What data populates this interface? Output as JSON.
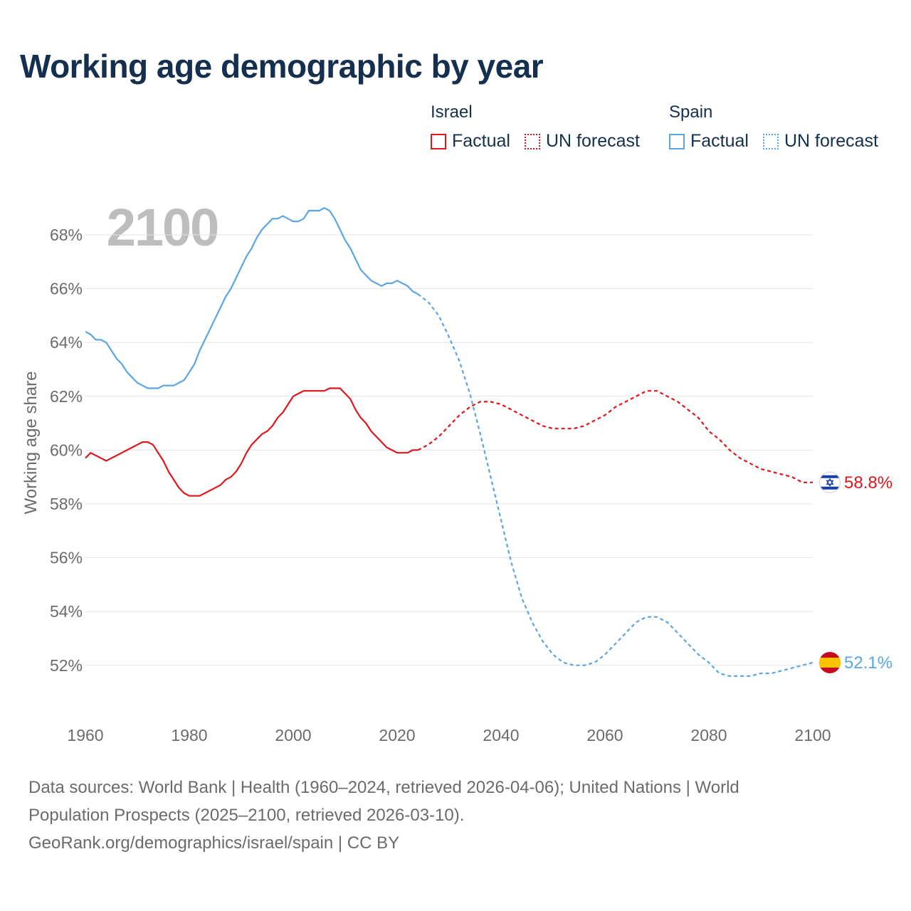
{
  "title": "Working age demographic by year",
  "legend": {
    "groups": [
      {
        "name": "Israel",
        "color": "#e0161d",
        "items": [
          {
            "label": "Factual",
            "style": "solid"
          },
          {
            "label": "UN forecast",
            "style": "dotted"
          }
        ]
      },
      {
        "name": "Spain",
        "color": "#5aa5e6",
        "items": [
          {
            "label": "Factual",
            "style": "solid"
          },
          {
            "label": "UN forecast",
            "style": "dotted"
          }
        ]
      }
    ]
  },
  "footer": {
    "line1": "Data sources: World Bank | Health (1960–2024, retrieved 2026-04-06); United Nations | World",
    "line2": "Population Prospects (2025–2100, retrieved 2026-03-10).",
    "line3": "GeoRank.org/demographics/israel/spain | CC BY"
  },
  "chart_data": {
    "type": "line",
    "title": "Working age demographic by year",
    "year_watermark": "2100",
    "ylabel": "Working age share",
    "xlabel": "",
    "xlim": [
      1960,
      2100
    ],
    "ylim": [
      50.5,
      69.5
    ],
    "x_ticks": [
      1960,
      1980,
      2000,
      2020,
      2040,
      2060,
      2080,
      2100
    ],
    "y_ticks": [
      52,
      54,
      56,
      58,
      60,
      62,
      64,
      66,
      68
    ],
    "y_tick_suffix": "%",
    "grid": true,
    "series": [
      {
        "name": "Israel",
        "color": "#e0161d",
        "flag": "israel-flag",
        "end_label": "58.8%",
        "factual": {
          "x": [
            1960,
            1961,
            1962,
            1963,
            1964,
            1965,
            1966,
            1967,
            1968,
            1969,
            1970,
            1971,
            1972,
            1973,
            1974,
            1975,
            1976,
            1977,
            1978,
            1979,
            1980,
            1981,
            1982,
            1983,
            1984,
            1985,
            1986,
            1987,
            1988,
            1989,
            1990,
            1991,
            1992,
            1993,
            1994,
            1995,
            1996,
            1997,
            1998,
            1999,
            2000,
            2001,
            2002,
            2003,
            2004,
            2005,
            2006,
            2007,
            2008,
            2009,
            2010,
            2011,
            2012,
            2013,
            2014,
            2015,
            2016,
            2017,
            2018,
            2019,
            2020,
            2021,
            2022,
            2023,
            2024
          ],
          "y": [
            59.7,
            59.9,
            59.8,
            59.7,
            59.6,
            59.7,
            59.8,
            59.9,
            60.0,
            60.1,
            60.2,
            60.3,
            60.3,
            60.2,
            59.9,
            59.6,
            59.2,
            58.9,
            58.6,
            58.4,
            58.3,
            58.3,
            58.3,
            58.4,
            58.5,
            58.6,
            58.7,
            58.9,
            59.0,
            59.2,
            59.5,
            59.9,
            60.2,
            60.4,
            60.6,
            60.7,
            60.9,
            61.2,
            61.4,
            61.7,
            62.0,
            62.1,
            62.2,
            62.2,
            62.2,
            62.2,
            62.2,
            62.3,
            62.3,
            62.3,
            62.1,
            61.9,
            61.5,
            61.2,
            61.0,
            60.7,
            60.5,
            60.3,
            60.1,
            60.0,
            59.9,
            59.9,
            59.9,
            60.0,
            60.0
          ]
        },
        "forecast": {
          "x": [
            2024,
            2026,
            2028,
            2030,
            2032,
            2034,
            2036,
            2038,
            2040,
            2042,
            2044,
            2046,
            2048,
            2050,
            2052,
            2054,
            2056,
            2058,
            2060,
            2062,
            2064,
            2066,
            2068,
            2070,
            2072,
            2074,
            2076,
            2078,
            2080,
            2082,
            2084,
            2086,
            2088,
            2090,
            2092,
            2094,
            2096,
            2098,
            2100
          ],
          "y": [
            60.0,
            60.2,
            60.5,
            60.9,
            61.3,
            61.6,
            61.8,
            61.8,
            61.7,
            61.5,
            61.3,
            61.1,
            60.9,
            60.8,
            60.8,
            60.8,
            60.9,
            61.1,
            61.3,
            61.6,
            61.8,
            62.0,
            62.2,
            62.2,
            62.0,
            61.8,
            61.5,
            61.2,
            60.7,
            60.4,
            60.0,
            59.7,
            59.5,
            59.3,
            59.2,
            59.1,
            59.0,
            58.8,
            58.8
          ]
        }
      },
      {
        "name": "Spain",
        "color": "#5aa5e6",
        "flag": "spain-flag",
        "end_label": "52.1%",
        "factual": {
          "x": [
            1960,
            1961,
            1962,
            1963,
            1964,
            1965,
            1966,
            1967,
            1968,
            1969,
            1970,
            1971,
            1972,
            1973,
            1974,
            1975,
            1976,
            1977,
            1978,
            1979,
            1980,
            1981,
            1982,
            1983,
            1984,
            1985,
            1986,
            1987,
            1988,
            1989,
            1990,
            1991,
            1992,
            1993,
            1994,
            1995,
            1996,
            1997,
            1998,
            1999,
            2000,
            2001,
            2002,
            2003,
            2004,
            2005,
            2006,
            2007,
            2008,
            2009,
            2010,
            2011,
            2012,
            2013,
            2014,
            2015,
            2016,
            2017,
            2018,
            2019,
            2020,
            2021,
            2022,
            2023,
            2024
          ],
          "y": [
            64.4,
            64.3,
            64.1,
            64.1,
            64.0,
            63.7,
            63.4,
            63.2,
            62.9,
            62.7,
            62.5,
            62.4,
            62.3,
            62.3,
            62.3,
            62.4,
            62.4,
            62.4,
            62.5,
            62.6,
            62.9,
            63.2,
            63.7,
            64.1,
            64.5,
            64.9,
            65.3,
            65.7,
            66.0,
            66.4,
            66.8,
            67.2,
            67.5,
            67.9,
            68.2,
            68.4,
            68.6,
            68.6,
            68.7,
            68.6,
            68.5,
            68.5,
            68.6,
            68.9,
            68.9,
            68.9,
            69.0,
            68.9,
            68.6,
            68.2,
            67.8,
            67.5,
            67.1,
            66.7,
            66.5,
            66.3,
            66.2,
            66.1,
            66.2,
            66.2,
            66.3,
            66.2,
            66.1,
            65.9,
            65.8
          ]
        },
        "forecast": {
          "x": [
            2024,
            2026,
            2028,
            2030,
            2032,
            2034,
            2036,
            2038,
            2040,
            2042,
            2044,
            2046,
            2048,
            2050,
            2052,
            2054,
            2056,
            2058,
            2060,
            2062,
            2064,
            2066,
            2068,
            2070,
            2072,
            2074,
            2076,
            2078,
            2080,
            2082,
            2084,
            2086,
            2088,
            2090,
            2092,
            2094,
            2096,
            2098,
            2100
          ],
          "y": [
            65.8,
            65.5,
            65.0,
            64.2,
            63.3,
            62.1,
            60.6,
            59.0,
            57.4,
            55.8,
            54.5,
            53.6,
            52.9,
            52.4,
            52.1,
            52.0,
            52.0,
            52.1,
            52.4,
            52.8,
            53.2,
            53.6,
            53.8,
            53.8,
            53.6,
            53.2,
            52.8,
            52.4,
            52.1,
            51.7,
            51.6,
            51.6,
            51.6,
            51.7,
            51.7,
            51.8,
            51.9,
            52.0,
            52.1
          ]
        }
      }
    ]
  }
}
